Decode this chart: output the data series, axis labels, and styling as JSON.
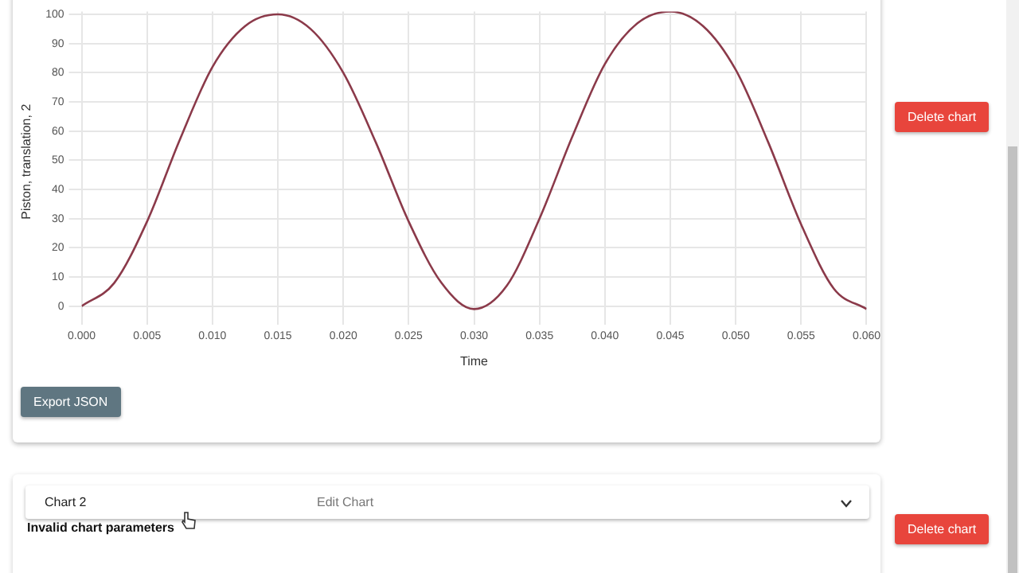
{
  "chart_data": {
    "type": "line",
    "xlabel": "Time",
    "ylabel": "Piston, translation, 2",
    "x": [
      0,
      0.0025,
      0.005,
      0.0075,
      0.01,
      0.0125,
      0.015,
      0.0175,
      0.02,
      0.0225,
      0.025,
      0.0275,
      0.03,
      0.0325,
      0.035,
      0.0375,
      0.04,
      0.0425,
      0.045,
      0.0475,
      0.05,
      0.0525,
      0.055,
      0.0575,
      0.06
    ],
    "series": [
      {
        "color": "#8b3a4a",
        "values": [
          0,
          8,
          29,
          57,
          82,
          96,
          100,
          95,
          80,
          56,
          29,
          8,
          -1,
          7,
          30,
          58,
          83,
          97,
          101,
          96,
          81,
          56,
          28,
          6,
          -1
        ]
      }
    ],
    "xlim": [
      0,
      0.06
    ],
    "xticks": [
      {
        "value": 0,
        "label": "0.000"
      },
      0.005,
      {
        "value": 0.01,
        "label": "0.010"
      },
      0.015,
      {
        "value": 0.02,
        "label": "0.020"
      },
      0.025,
      {
        "value": 0.03,
        "label": "0.030"
      },
      0.035,
      {
        "value": 0.04,
        "label": "0.040"
      },
      0.045,
      {
        "value": 0.05,
        "label": "0.050"
      },
      0.055,
      {
        "value": 0.06,
        "label": "0.060"
      }
    ],
    "ylim": [
      -2,
      101
    ],
    "yticks": [
      0,
      10,
      20,
      30,
      40,
      50,
      60,
      70,
      80,
      90,
      100
    ],
    "grid": true,
    "legend": false,
    "marker": "none",
    "line_style": "solid",
    "annotations": [
      "Export JSON",
      "Delete chart",
      "Chart 2",
      "Edit Chart",
      "Invalid chart parameters",
      "Delete chart"
    ]
  }
}
